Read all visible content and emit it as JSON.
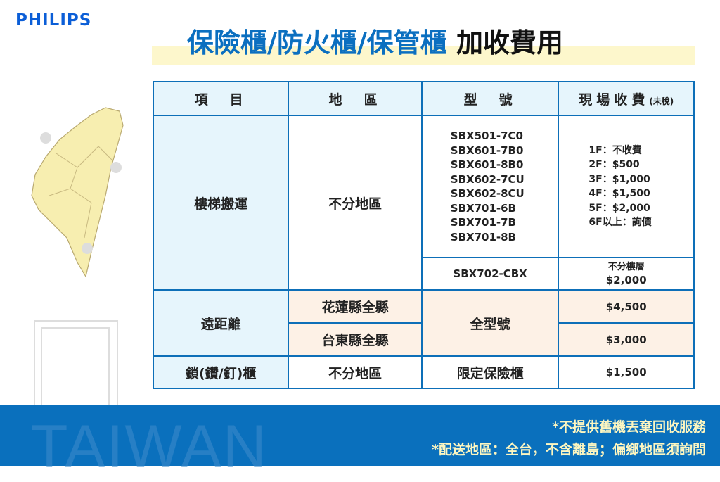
{
  "brand": "PHILIPS",
  "title": {
    "main": "保險櫃/防火櫃/保管櫃",
    "suffix": "加收費用"
  },
  "table": {
    "headers": [
      "項　目",
      "地　區",
      "型　號",
      "現場收費"
    ],
    "header_note": "(未稅)",
    "stairs": {
      "item": "樓梯搬運",
      "region": "不分地區",
      "models": [
        "SBX501-7C0",
        "SBX601-7B0",
        "SBX601-8B0",
        "SBX602-7CU",
        "SBX602-8CU",
        "SBX701-6B",
        "SBX701-7B",
        "SBX701-8B"
      ],
      "fees": [
        "1F：不收費",
        "2F：$500",
        "3F：$1,000",
        "4F：$1,500",
        "5F：$2,000",
        "6F以上：詢價"
      ],
      "special_model": "SBX702-CBX",
      "special_fee_line1": "不分樓層",
      "special_fee_line2": "$2,000"
    },
    "remote": {
      "item": "遠距離",
      "regions": [
        "花蓮縣全縣",
        "台東縣全縣"
      ],
      "model": "全型號",
      "fees": [
        "$4,500",
        "$3,000"
      ]
    },
    "lock": {
      "item": "鎖(鑽/釘)櫃",
      "region": "不分地區",
      "model": "限定保險櫃",
      "fee": "$1,500"
    }
  },
  "footer": {
    "watermark": "TAIWAN",
    "notes": [
      "*不提供舊機丟棄回收服務",
      "*配送地區：全台，不含離島；偏鄉地區須詢問"
    ]
  },
  "colors": {
    "brand": "#0b5ed7",
    "border": "#0d6fb8",
    "footer": "#0a70bd",
    "highlight": "#fdf7cc"
  }
}
